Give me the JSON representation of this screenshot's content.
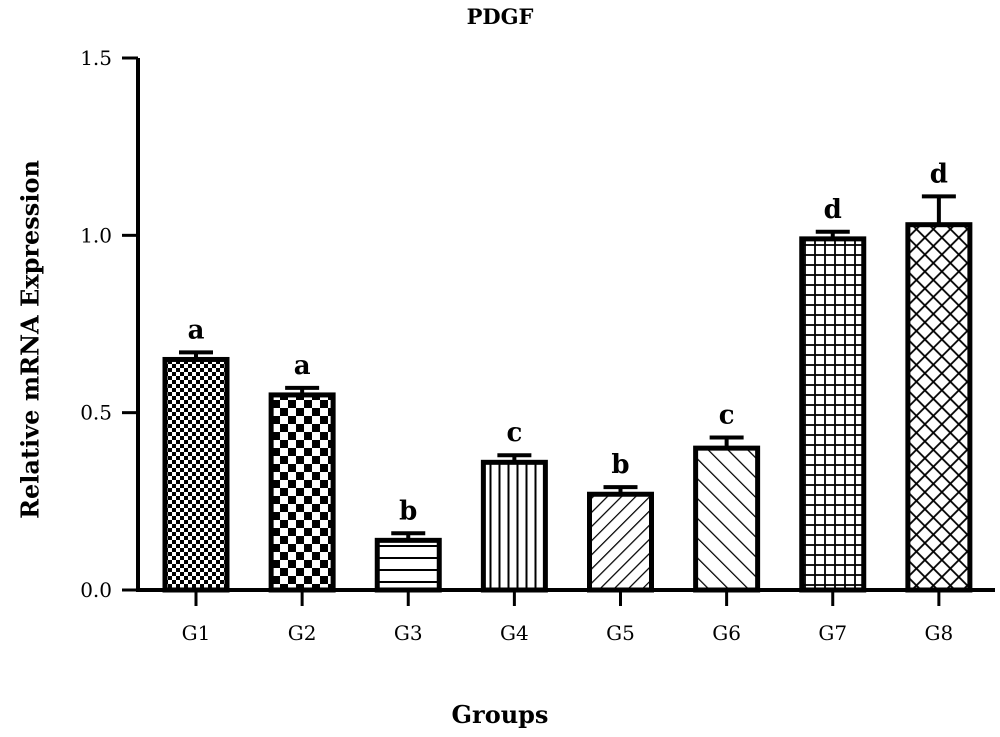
{
  "chart_data": {
    "type": "bar",
    "title": "PDGF",
    "xlabel": "Groups",
    "ylabel": "Relative mRNA Expression",
    "categories": [
      "G1",
      "G2",
      "G3",
      "G4",
      "G5",
      "G6",
      "G7",
      "G8"
    ],
    "values": [
      0.65,
      0.55,
      0.14,
      0.36,
      0.27,
      0.4,
      0.99,
      1.03
    ],
    "error": [
      0.02,
      0.02,
      0.02,
      0.02,
      0.02,
      0.03,
      0.02,
      0.08
    ],
    "significance": [
      "a",
      "a",
      "b",
      "c",
      "b",
      "c",
      "d",
      "d"
    ],
    "patterns": [
      "fine-checker",
      "checker",
      "horizontal-lines",
      "vertical-lines",
      "diagonal-lines",
      "diagonal-lines-sparse",
      "grid",
      "crosshatch-diagonal"
    ],
    "ylim": [
      0,
      1.5
    ],
    "yticks": [
      "0.0",
      "0.5",
      "1.0",
      "1.5"
    ],
    "ytick_values": [
      0,
      0.5,
      1.0,
      1.5
    ],
    "grid": false,
    "colors": {
      "stroke": "#000000",
      "fill": "#ffffff"
    }
  }
}
